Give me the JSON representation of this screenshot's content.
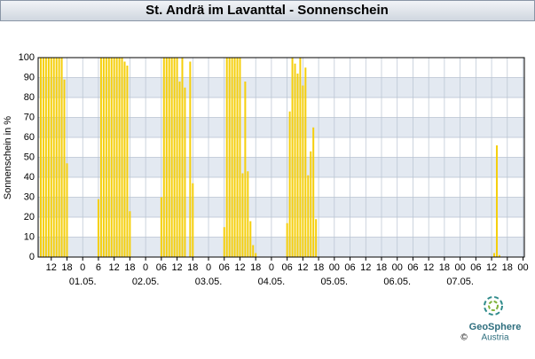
{
  "chart_data": {
    "type": "bar",
    "title": "St. Andrä im Lavanttal - Sonnenschein",
    "ylabel": "Sonnenschein in %",
    "color": "#f5cf0c",
    "x": [
      -16,
      -15,
      -14,
      -13,
      -12,
      -11,
      -10,
      -9,
      -8,
      -7,
      -6,
      6,
      7,
      8,
      9,
      10,
      11,
      12,
      13,
      14,
      15,
      16,
      17,
      18,
      30,
      31,
      32,
      33,
      34,
      35,
      36,
      37,
      38,
      39,
      41,
      42,
      54,
      55,
      56,
      57,
      58,
      59,
      60,
      61,
      62,
      63,
      64,
      65,
      66,
      78,
      79,
      80,
      81,
      82,
      83,
      84,
      85,
      86,
      87,
      88,
      89,
      157,
      158,
      159
    ],
    "values": [
      100,
      100,
      100,
      100,
      100,
      100,
      100,
      100,
      100,
      89,
      47,
      29,
      100,
      100,
      100,
      100,
      100,
      100,
      100,
      100,
      100,
      98,
      96,
      23,
      30,
      100,
      100,
      100,
      100,
      100,
      100,
      88,
      100,
      85,
      98,
      37,
      15,
      100,
      100,
      100,
      100,
      100,
      100,
      42,
      88,
      43,
      18,
      6,
      2,
      17,
      73,
      100,
      97,
      92,
      100,
      86,
      95,
      41,
      53,
      65,
      19,
      2,
      56,
      1
    ],
    "xlim": [
      -17,
      168.5
    ],
    "ylim": [
      0,
      100
    ],
    "yticks": [
      0,
      10,
      20,
      30,
      40,
      50,
      60,
      70,
      80,
      90,
      100
    ],
    "xticks": [
      {
        "value": -12,
        "label": "12"
      },
      {
        "value": -6,
        "label": "18"
      },
      0,
      6,
      12,
      18,
      {
        "value": 24,
        "label": "0"
      },
      {
        "value": 30,
        "label": "06"
      },
      {
        "value": 36,
        "label": "12"
      },
      {
        "value": 42,
        "label": "18"
      },
      {
        "value": 48,
        "label": "0"
      },
      {
        "value": 54,
        "label": "06"
      },
      {
        "value": 60,
        "label": "12"
      },
      {
        "value": 66,
        "label": "18"
      },
      {
        "value": 72,
        "label": "0"
      },
      {
        "value": 78,
        "label": "06"
      },
      {
        "value": 84,
        "label": "12"
      },
      {
        "value": 90,
        "label": "18"
      },
      {
        "value": 96,
        "label": "00"
      },
      {
        "value": 102,
        "label": "06"
      },
      {
        "value": 108,
        "label": "12"
      },
      {
        "value": 114,
        "label": "18"
      },
      {
        "value": 120,
        "label": "00"
      },
      {
        "value": 126,
        "label": "06"
      },
      {
        "value": 132,
        "label": "12"
      },
      {
        "value": 138,
        "label": "18"
      },
      {
        "value": 144,
        "label": "00"
      },
      {
        "value": 150,
        "label": "06"
      },
      {
        "value": 156,
        "label": "12"
      },
      {
        "value": 162,
        "label": "18"
      },
      {
        "value": 168,
        "label": "00"
      }
    ],
    "x_day_labels": [
      {
        "value": 0,
        "label": "01.05."
      },
      {
        "value": 24,
        "label": "02.05."
      },
      {
        "value": 48,
        "label": "03.05."
      },
      {
        "value": 72,
        "label": "04.05."
      },
      {
        "value": 96,
        "label": "05.05."
      },
      {
        "value": 120,
        "label": "06.05."
      },
      {
        "value": 144,
        "label": "07.05."
      }
    ],
    "grid": true
  },
  "footer": {
    "logo_name": "GeoSphere",
    "logo_sub": "Austria",
    "copyright": "©"
  }
}
